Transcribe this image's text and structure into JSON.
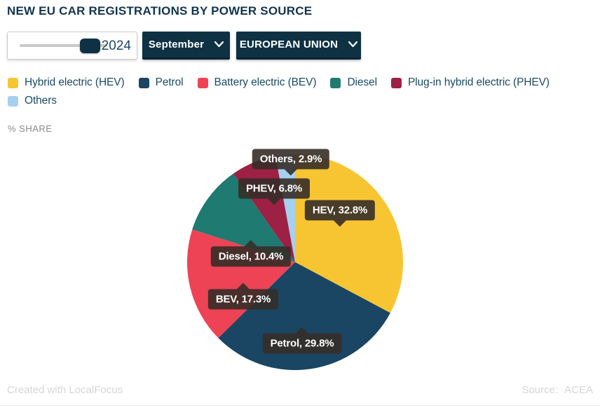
{
  "title": "NEW EU CAR REGISTRATIONS BY POWER SOURCE",
  "controls": {
    "year_slider": {
      "value": "2024"
    },
    "month_dropdown": {
      "label": "September"
    },
    "region_dropdown": {
      "label": "EUROPEAN UNION"
    }
  },
  "legend": [
    {
      "label": "Hybrid electric (HEV)",
      "color": "#F8C532"
    },
    {
      "label": "Petrol",
      "color": "#1A4563"
    },
    {
      "label": "Battery electric (BEV)",
      "color": "#EE4355"
    },
    {
      "label": "Diesel",
      "color": "#1F7A71"
    },
    {
      "label": "Plug-in hybrid electric (PHEV)",
      "color": "#9D2144"
    },
    {
      "label": "Others",
      "color": "#A6D0EF"
    }
  ],
  "axis_label": "% SHARE",
  "chart_data": {
    "type": "pie",
    "title": "NEW EU CAR REGISTRATIONS BY POWER SOURCE",
    "unit": "% share",
    "start_angle_deg": 0,
    "direction": "clockwise",
    "slices": [
      {
        "name": "Hybrid electric (HEV)",
        "short": "HEV",
        "value": 32.8,
        "color": "#F8C532",
        "label": "HEV, 32.8%"
      },
      {
        "name": "Petrol",
        "short": "Petrol",
        "value": 29.8,
        "color": "#1A4563",
        "label": "Petrol, 29.8%"
      },
      {
        "name": "Battery electric (BEV)",
        "short": "BEV",
        "value": 17.3,
        "color": "#EE4355",
        "label": "BEV, 17.3%"
      },
      {
        "name": "Diesel",
        "short": "Diesel",
        "value": 10.4,
        "color": "#1F7A71",
        "label": "Diesel, 10.4%"
      },
      {
        "name": "Plug-in hybrid electric (PHEV)",
        "short": "PHEV",
        "value": 6.8,
        "color": "#9D2144",
        "label": "PHEV, 6.8%"
      },
      {
        "name": "Others",
        "short": "Others",
        "value": 2.9,
        "color": "#A6D0EF",
        "label": "Others, 2.9%"
      }
    ]
  },
  "footer": {
    "left": "Created with LocalFocus",
    "source_label": "Source:",
    "source_value": "ACEA"
  }
}
